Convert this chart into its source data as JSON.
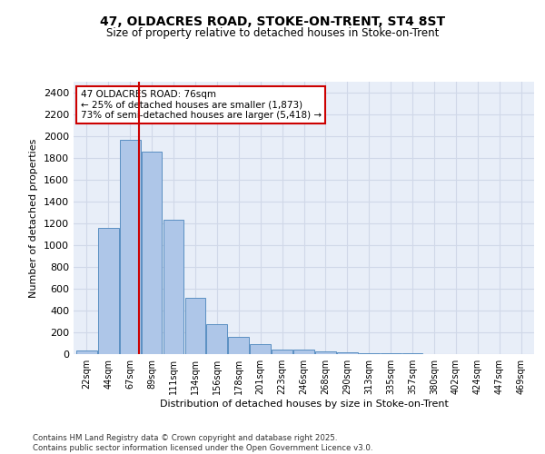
{
  "title_line1": "47, OLDACRES ROAD, STOKE-ON-TRENT, ST4 8ST",
  "title_line2": "Size of property relative to detached houses in Stoke-on-Trent",
  "xlabel": "Distribution of detached houses by size in Stoke-on-Trent",
  "ylabel": "Number of detached properties",
  "bar_labels": [
    "22sqm",
    "44sqm",
    "67sqm",
    "89sqm",
    "111sqm",
    "134sqm",
    "156sqm",
    "178sqm",
    "201sqm",
    "223sqm",
    "246sqm",
    "268sqm",
    "290sqm",
    "313sqm",
    "335sqm",
    "357sqm",
    "380sqm",
    "402sqm",
    "424sqm",
    "447sqm",
    "469sqm"
  ],
  "bar_values": [
    30,
    1160,
    1970,
    1855,
    1230,
    515,
    275,
    155,
    90,
    45,
    45,
    25,
    20,
    10,
    5,
    5,
    3,
    2,
    2,
    2,
    2
  ],
  "bar_color": "#aec6e8",
  "bar_edge_color": "#5a8fc2",
  "grid_color": "#d0d8e8",
  "bg_color": "#e8eef8",
  "annotation_text": "47 OLDACRES ROAD: 76sqm\n← 25% of detached houses are smaller (1,873)\n73% of semi-detached houses are larger (5,418) →",
  "annotation_box_color": "#ffffff",
  "annotation_border_color": "#cc0000",
  "red_line_color": "#cc0000",
  "ylim": [
    0,
    2500
  ],
  "yticks": [
    0,
    200,
    400,
    600,
    800,
    1000,
    1200,
    1400,
    1600,
    1800,
    2000,
    2200,
    2400
  ],
  "footer_line1": "Contains HM Land Registry data © Crown copyright and database right 2025.",
  "footer_line2": "Contains public sector information licensed under the Open Government Licence v3.0."
}
